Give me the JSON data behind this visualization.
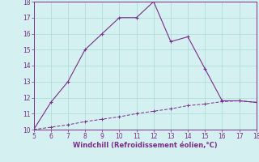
{
  "xlabel": "Windchill (Refroidissement éolien,°C)",
  "line1_x": [
    5,
    6,
    7,
    8,
    9,
    10,
    11,
    12,
    13,
    14,
    15,
    16,
    17,
    18
  ],
  "line1_y": [
    10.0,
    11.7,
    13.0,
    15.0,
    16.0,
    17.0,
    17.0,
    18.0,
    15.5,
    15.8,
    13.8,
    11.8,
    11.8,
    11.7
  ],
  "line2_x": [
    5,
    6,
    7,
    8,
    9,
    10,
    11,
    12,
    13,
    14,
    15,
    16,
    17,
    18
  ],
  "line2_y": [
    10.0,
    10.15,
    10.3,
    10.5,
    10.65,
    10.8,
    11.0,
    11.15,
    11.3,
    11.5,
    11.6,
    11.75,
    11.8,
    11.7
  ],
  "xlim": [
    5,
    18
  ],
  "ylim": [
    10,
    18
  ],
  "xticks": [
    5,
    6,
    7,
    8,
    9,
    10,
    11,
    12,
    13,
    14,
    15,
    16,
    17,
    18
  ],
  "yticks": [
    10,
    11,
    12,
    13,
    14,
    15,
    16,
    17,
    18
  ],
  "line_color": "#7b2d8b",
  "bg_color": "#d4f0f0",
  "grid_color": "#aad8d8",
  "tick_label_color": "#7b2d8b",
  "xlabel_color": "#7b2d8b",
  "tick_fontsize": 5.5,
  "xlabel_fontsize": 6.0
}
